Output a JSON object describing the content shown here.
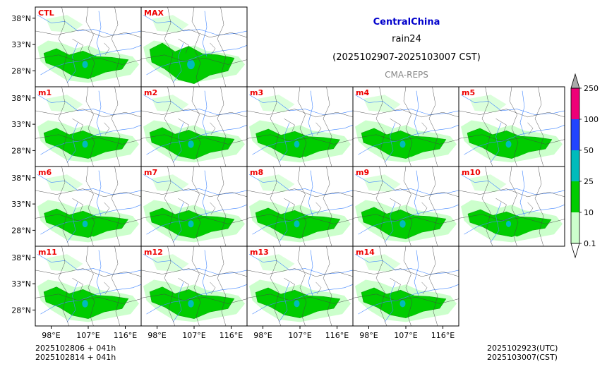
{
  "header": {
    "region": "CentralChina",
    "variable": "rain24",
    "period": "(2025102907-2025103007 CST)",
    "source": "CMA-REPS"
  },
  "panels": [
    {
      "label": "CTL",
      "row": 0,
      "col": 0,
      "intensity": 1.0
    },
    {
      "label": "MAX",
      "row": 0,
      "col": 1,
      "intensity": 1.35
    },
    {
      "label": "m1",
      "row": 1,
      "col": 0,
      "intensity": 1.0
    },
    {
      "label": "m2",
      "row": 1,
      "col": 1,
      "intensity": 1.05
    },
    {
      "label": "m3",
      "row": 1,
      "col": 2,
      "intensity": 0.95
    },
    {
      "label": "m4",
      "row": 1,
      "col": 3,
      "intensity": 1.0
    },
    {
      "label": "m5",
      "row": 1,
      "col": 4,
      "intensity": 1.0
    },
    {
      "label": "m6",
      "row": 2,
      "col": 0,
      "intensity": 0.95
    },
    {
      "label": "m7",
      "row": 2,
      "col": 1,
      "intensity": 1.0
    },
    {
      "label": "m8",
      "row": 2,
      "col": 2,
      "intensity": 1.0
    },
    {
      "label": "m9",
      "row": 2,
      "col": 3,
      "intensity": 1.05
    },
    {
      "label": "m10",
      "row": 2,
      "col": 4,
      "intensity": 0.9
    },
    {
      "label": "m11",
      "row": 3,
      "col": 0,
      "intensity": 1.05
    },
    {
      "label": "m12",
      "row": 3,
      "col": 1,
      "intensity": 1.05
    },
    {
      "label": "m13",
      "row": 3,
      "col": 2,
      "intensity": 1.0
    },
    {
      "label": "m14",
      "row": 3,
      "col": 3,
      "intensity": 1.0
    }
  ],
  "axes": {
    "lat_labels": [
      "38°N",
      "33°N",
      "28°N"
    ],
    "lon_labels": [
      "98°E",
      "107°E",
      "116°E"
    ]
  },
  "colorbar": {
    "ticks": [
      "0.1",
      "10",
      "25",
      "50",
      "100",
      "250"
    ],
    "colors": [
      "#ccffcc",
      "#00cc00",
      "#00bbbb",
      "#2244ff",
      "#ee0077"
    ],
    "extend_top_color": "#aaaaaa",
    "extend_bottom_color": "#ffffff"
  },
  "footer": {
    "init_line1": "2025102806  +  041h",
    "init_line2": "2025102814  +  041h",
    "valid_utc": "2025102923(UTC)",
    "valid_cst": "2025103007(CST)"
  },
  "style": {
    "label_color": "#ee0000",
    "light_green": "#ccffcc",
    "green": "#00cc00",
    "cyan": "#00bbbb",
    "river": "#4488ff",
    "border": "#444444"
  }
}
